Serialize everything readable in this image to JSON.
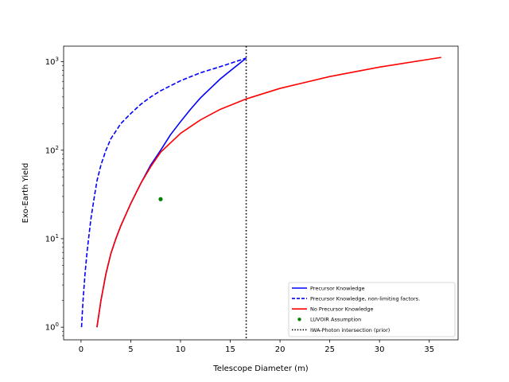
{
  "chart_data": {
    "type": "line",
    "xlabel": "Telescope Diameter (m)",
    "ylabel": "Exo-Earth Yield",
    "xlim": [
      -1.75,
      37.9
    ],
    "ylim": [
      0.72,
      1500
    ],
    "yscale": "log",
    "x_ticks": [
      0,
      5,
      10,
      15,
      20,
      25,
      30,
      35
    ],
    "x_tick_labels": [
      "0",
      "5",
      "10",
      "15",
      "20",
      "25",
      "30",
      "35"
    ],
    "y_ticks": [
      1,
      10,
      100,
      1000
    ],
    "y_tick_labels": [
      "10^0",
      "10^1",
      "10^2",
      "10^3"
    ],
    "grid": false,
    "legend_position": "lower right",
    "series": [
      {
        "name": "Precursor Knowledge",
        "style": "solid",
        "color": "#0000ff",
        "x": [
          1.6,
          2.0,
          2.5,
          3.0,
          3.5,
          4.0,
          5.0,
          6.0,
          7.0,
          8.0,
          9.0,
          10.0,
          11.0,
          12.0,
          13.0,
          14.0,
          15.0,
          16.0,
          16.6
        ],
        "y": [
          1.0,
          2.0,
          4.0,
          6.8,
          10.0,
          14.0,
          25.0,
          42.0,
          68.0,
          100.0,
          150.0,
          210.0,
          290.0,
          390.0,
          500.0,
          640.0,
          790.0,
          970.0,
          1100.0
        ]
      },
      {
        "name": "Precursor Knowledge, non-limiting factors.",
        "style": "dashed",
        "color": "#0000ff",
        "x": [
          0.05,
          0.2,
          0.4,
          0.6,
          0.8,
          1.0,
          1.3,
          1.6,
          2.0,
          2.5,
          3.0,
          4.0,
          5.0,
          6.0,
          7.0,
          8.0,
          10.0,
          12.0,
          14.0,
          16.6
        ],
        "y": [
          1.0,
          2.0,
          4.0,
          7.0,
          11.0,
          17.0,
          28.0,
          45.0,
          68.0,
          100.0,
          135.0,
          200.0,
          260.0,
          330.0,
          400.0,
          470.0,
          610.0,
          750.0,
          880.0,
          1100.0
        ]
      },
      {
        "name": "No Precursor Knowledge",
        "style": "solid",
        "color": "#ff0000",
        "x": [
          1.6,
          2.0,
          2.5,
          3.0,
          3.5,
          4.0,
          5.0,
          6.0,
          7.0,
          8.0,
          10.0,
          12.0,
          14.0,
          16.6,
          20.0,
          25.0,
          30.0,
          36.2
        ],
        "y": [
          1.0,
          2.0,
          4.0,
          6.8,
          10.0,
          14.0,
          25.0,
          42.0,
          65.0,
          95.0,
          155.0,
          220.0,
          290.0,
          380.0,
          500.0,
          680.0,
          870.0,
          1120.0
        ]
      },
      {
        "name": "LUVOIR Assumption",
        "style": "point",
        "color": "#008000",
        "x": [
          8.0
        ],
        "y": [
          28.0
        ]
      },
      {
        "name": "IWA-Photon intersection (prior)",
        "style": "vline",
        "color": "#000000",
        "x_value": 16.6
      }
    ]
  }
}
